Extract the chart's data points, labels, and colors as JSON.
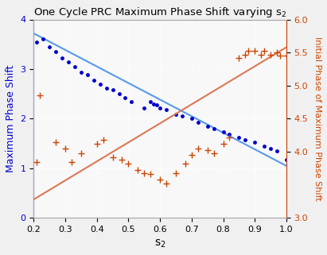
{
  "title": "One Cycle PRC Maximum Phase Shift varying s$_2$",
  "xlabel": "s$_2$",
  "ylabel_left": "Maximum Phase Shift",
  "ylabel_right": "Initial Phase of Maximum Phase Shift",
  "xlim": [
    0.2,
    1.0
  ],
  "ylim_left": [
    0,
    4
  ],
  "ylim_right": [
    3,
    6
  ],
  "left_color": "#0000cc",
  "right_color": "#cc4400",
  "blue_scatter_x": [
    0.21,
    0.23,
    0.25,
    0.27,
    0.29,
    0.31,
    0.33,
    0.35,
    0.37,
    0.39,
    0.41,
    0.43,
    0.45,
    0.47,
    0.49,
    0.51,
    0.55,
    0.57,
    0.58,
    0.59,
    0.6,
    0.62,
    0.65,
    0.67,
    0.7,
    0.72,
    0.75,
    0.77,
    0.8,
    0.82,
    0.85,
    0.87,
    0.9,
    0.93,
    0.95,
    0.97,
    1.0
  ],
  "blue_scatter_y": [
    3.55,
    3.6,
    3.45,
    3.35,
    3.22,
    3.15,
    3.05,
    2.93,
    2.88,
    2.78,
    2.7,
    2.62,
    2.58,
    2.5,
    2.42,
    2.35,
    2.22,
    2.35,
    2.3,
    2.28,
    2.22,
    2.18,
    2.08,
    2.05,
    2.0,
    1.93,
    1.85,
    1.8,
    1.73,
    1.68,
    1.62,
    1.57,
    1.52,
    1.45,
    1.4,
    1.35,
    1.18
  ],
  "orange_scatter_x": [
    0.21,
    0.22,
    0.27,
    0.3,
    0.32,
    0.35,
    0.4,
    0.42,
    0.45,
    0.48,
    0.5,
    0.53,
    0.55,
    0.57,
    0.6,
    0.62,
    0.65,
    0.68,
    0.7,
    0.72,
    0.75,
    0.77,
    0.8,
    0.82,
    0.85,
    0.87,
    0.88,
    0.9,
    0.92,
    0.93,
    0.95,
    0.97,
    0.98,
    1.0
  ],
  "orange_scatter_y": [
    3.85,
    4.85,
    4.15,
    4.05,
    3.85,
    3.98,
    4.12,
    4.18,
    3.92,
    3.88,
    3.82,
    3.72,
    3.68,
    3.67,
    3.58,
    3.52,
    3.68,
    3.82,
    3.95,
    4.05,
    4.02,
    3.98,
    4.12,
    4.22,
    5.42,
    5.47,
    5.52,
    5.52,
    5.47,
    5.52,
    5.47,
    5.5,
    5.45,
    5.45
  ],
  "blue_line_x": [
    0.2,
    1.0
  ],
  "blue_line_y": [
    3.72,
    1.05
  ],
  "orange_line_x": [
    0.2,
    1.0
  ],
  "orange_line_y": [
    3.28,
    5.58
  ],
  "left_yticks": [
    0,
    1,
    2,
    3,
    4
  ],
  "right_yticks": [
    3,
    4,
    4.5,
    5,
    5.5,
    6
  ],
  "xticks": [
    0.2,
    0.3,
    0.4,
    0.5,
    0.6,
    0.7,
    0.8,
    0.9,
    1.0
  ],
  "figsize": [
    4.11,
    3.21
  ],
  "dpi": 100
}
